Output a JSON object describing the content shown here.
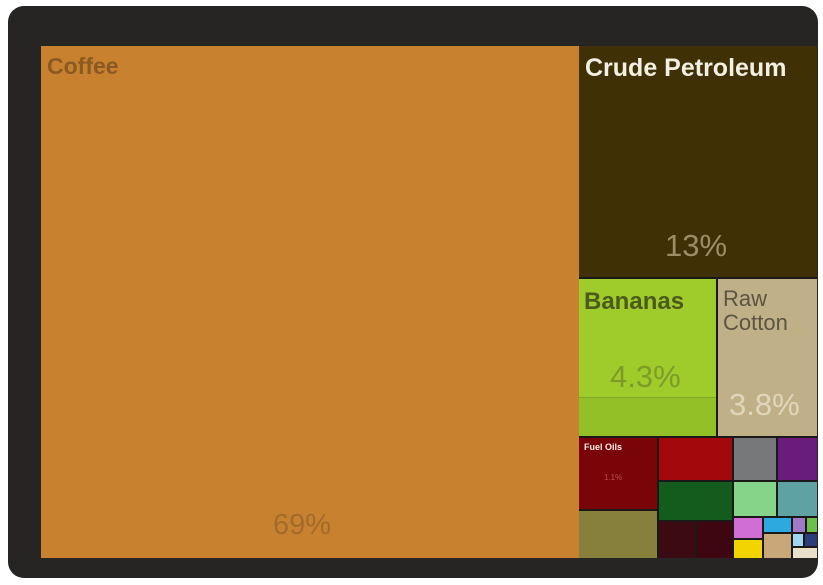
{
  "chart_data": {
    "type": "treemap",
    "tiles": [
      {
        "id": "coffee",
        "name": "Coffee",
        "label": "69%",
        "value": 69,
        "color": "#c8822f",
        "name_color": "#8a5a22",
        "pct_color": "#a26b2c"
      },
      {
        "id": "crude-petroleum",
        "name": "Crude Petroleum",
        "label": "13%",
        "value": 13,
        "color": "#3f3006",
        "name_color": "#f3efe2",
        "pct_color": "#9c8d66"
      },
      {
        "id": "bananas",
        "name": "Bananas",
        "label": "4.3%",
        "value": 4.3,
        "color": "#9fcc2b",
        "name_color": "#4c5a1c",
        "pct_color": "#7e9b2a"
      },
      {
        "id": "raw-cotton",
        "name": "Raw\nCotton",
        "label": "3.8%",
        "value": 3.8,
        "color": "#c0b088",
        "name_color": "#5b5440",
        "pct_color": "#e0d6bc"
      },
      {
        "id": "fuel-oils",
        "name": "Fuel Oils",
        "label": "1.1%",
        "value": 1.1,
        "color": "#7a0508",
        "name_color": "#f3efe6",
        "pct_color": "#c24a4a"
      }
    ]
  }
}
